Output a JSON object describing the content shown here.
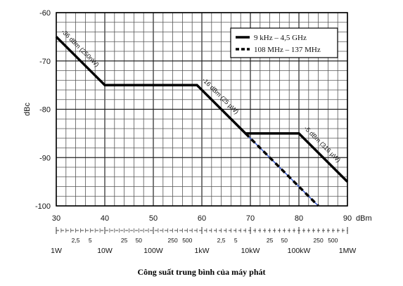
{
  "caption": "Công suất trung bình của máy phát",
  "chart_data": {
    "type": "line",
    "ylabel": "dBc",
    "xlabel": "dBm",
    "xlim": [
      30,
      90
    ],
    "ylim": [
      -100,
      -60
    ],
    "x_ticks": [
      "30",
      "40",
      "50",
      "60",
      "70",
      "80",
      "90"
    ],
    "y_ticks": [
      "-60",
      "-70",
      "-80",
      "-90",
      "-100"
    ],
    "grid": true,
    "legend_position": "top-right",
    "series": [
      {
        "name": "9 kHz – 4,5 GHz",
        "style": "solid",
        "color": "#000000",
        "x": [
          30,
          40,
          59,
          69,
          80,
          90
        ],
        "y": [
          -65,
          -75,
          -75,
          -85,
          -85,
          -95
        ]
      },
      {
        "name": "108 MHz – 137 MHz",
        "style": "dashed",
        "color": "#000000",
        "accent": "#3355cc",
        "x": [
          69,
          84
        ],
        "y": [
          -85,
          -100
        ]
      }
    ],
    "annotations": [
      {
        "text": "-36 dBm (250nW)",
        "x": 31,
        "y": -64
      },
      {
        "text": "-16 dBm (25 µW)",
        "x": 60,
        "y": -74
      },
      {
        "text": "-5 dBm (316 µW)",
        "x": 81,
        "y": -84
      }
    ],
    "power_scale": {
      "minor_labels": [
        {
          "text": "2,5",
          "dbm": 34
        },
        {
          "text": "5",
          "dbm": 37
        },
        {
          "text": "25",
          "dbm": 44
        },
        {
          "text": "50",
          "dbm": 47
        },
        {
          "text": "250",
          "dbm": 54
        },
        {
          "text": "500",
          "dbm": 57
        },
        {
          "text": "2,5",
          "dbm": 64
        },
        {
          "text": "5",
          "dbm": 67
        },
        {
          "text": "25",
          "dbm": 74
        },
        {
          "text": "50",
          "dbm": 77
        },
        {
          "text": "250",
          "dbm": 84
        },
        {
          "text": "500",
          "dbm": 87
        }
      ],
      "major_labels": [
        {
          "text": "1W",
          "dbm": 30
        },
        {
          "text": "10W",
          "dbm": 40
        },
        {
          "text": "100W",
          "dbm": 50
        },
        {
          "text": "1kW",
          "dbm": 60
        },
        {
          "text": "10kW",
          "dbm": 70
        },
        {
          "text": "100kW",
          "dbm": 80
        },
        {
          "text": "1MW",
          "dbm": 90
        }
      ]
    }
  }
}
